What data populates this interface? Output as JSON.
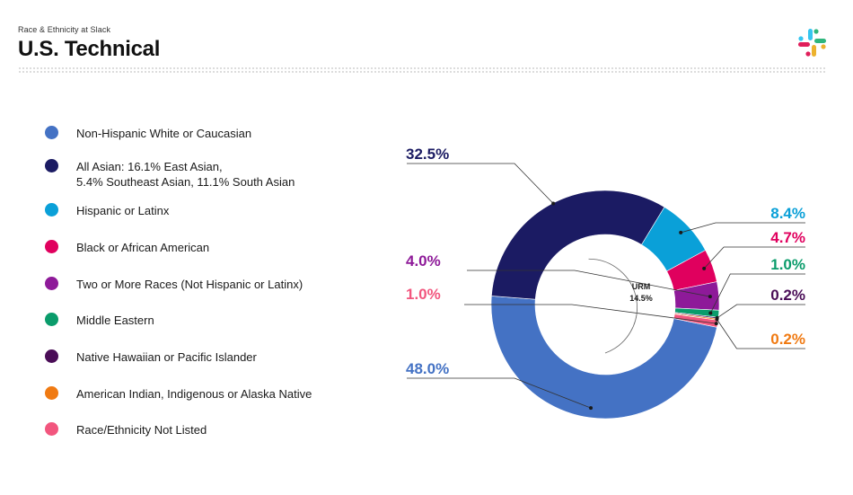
{
  "header": {
    "subtitle": "Race & Ethnicity at Slack",
    "title": "U.S. Technical"
  },
  "logo": {
    "name": "slack-logo"
  },
  "chart_data": {
    "type": "pie",
    "donut": true,
    "center_label": {
      "line1": "URM",
      "line2": "14.5%"
    },
    "categories": [
      "Non-Hispanic White or Caucasian",
      "All Asian: 16.1% East Asian, 5.4% Southeast Asian, 11.1% South Asian",
      "Hispanic or Latinx",
      "Black or African American",
      "Two or More Races (Not Hispanic or Latinx)",
      "Middle Eastern",
      "Native Hawaiian or Pacific Islander",
      "American Indian, Indigenous or Alaska Native",
      "Race/Ethnicity Not Listed"
    ],
    "legend_lines": [
      [
        "Non-Hispanic White or Caucasian"
      ],
      [
        "All Asian: 16.1% East Asian,",
        "5.4% Southeast Asian, 11.1% South Asian"
      ],
      [
        "Hispanic or Latinx"
      ],
      [
        "Black or African American"
      ],
      [
        "Two or More Races (Not Hispanic or Latinx)"
      ],
      [
        "Middle Eastern"
      ],
      [
        "Native Hawaiian or Pacific Islander"
      ],
      [
        "American Indian, Indigenous or Alaska Native"
      ],
      [
        "Race/Ethnicity Not Listed"
      ]
    ],
    "values": [
      48.0,
      32.5,
      8.4,
      4.7,
      4.0,
      1.0,
      0.2,
      0.2,
      1.0
    ],
    "labels": [
      "48.0%",
      "32.5%",
      "8.4%",
      "4.7%",
      "4.0%",
      "1.0%",
      "0.2%",
      "0.2%",
      "1.0%"
    ],
    "colors": [
      "#4472c4",
      "#1b1b63",
      "#0aa0d8",
      "#e0005e",
      "#8e1a99",
      "#0a9c6b",
      "#4a0d57",
      "#f07a12",
      "#f2567e"
    ],
    "legend_placement": "left"
  }
}
